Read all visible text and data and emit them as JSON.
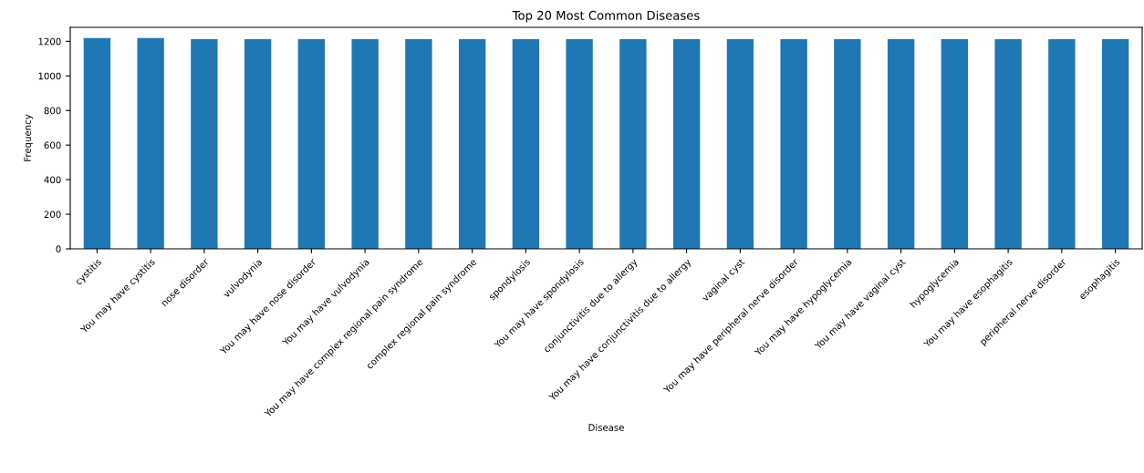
{
  "chart_data": {
    "type": "bar",
    "title": "Top 20 Most Common Diseases",
    "xlabel": "Disease",
    "ylabel": "Frequency",
    "categories": [
      "cystitis",
      "You may have cystitis",
      "nose disorder",
      "vulvodynia",
      "You may have nose disorder",
      "You may have vulvodynia",
      "You may have complex regional pain syndrome",
      "complex regional pain syndrome",
      "spondylosis",
      "You may have spondylosis",
      "conjunctivitis due to allergy",
      "You may have conjunctivitis due to allergy",
      "vaginal cyst",
      "You may have peripheral nerve disorder",
      "You may have hypoglycemia",
      "You may have vaginal cyst",
      "hypoglycemia",
      "You may have esophagitis",
      "peripheral nerve disorder",
      "esophagitis"
    ],
    "values": [
      1219,
      1219,
      1213,
      1213,
      1213,
      1213,
      1213,
      1213,
      1213,
      1213,
      1213,
      1213,
      1213,
      1213,
      1213,
      1213,
      1213,
      1213,
      1213,
      1213
    ],
    "color": "#1f77b4",
    "ylim": [
      0,
      1281
    ],
    "yticks": [
      0,
      200,
      400,
      600,
      800,
      1000,
      1200
    ],
    "grid": false,
    "legend": false
  }
}
